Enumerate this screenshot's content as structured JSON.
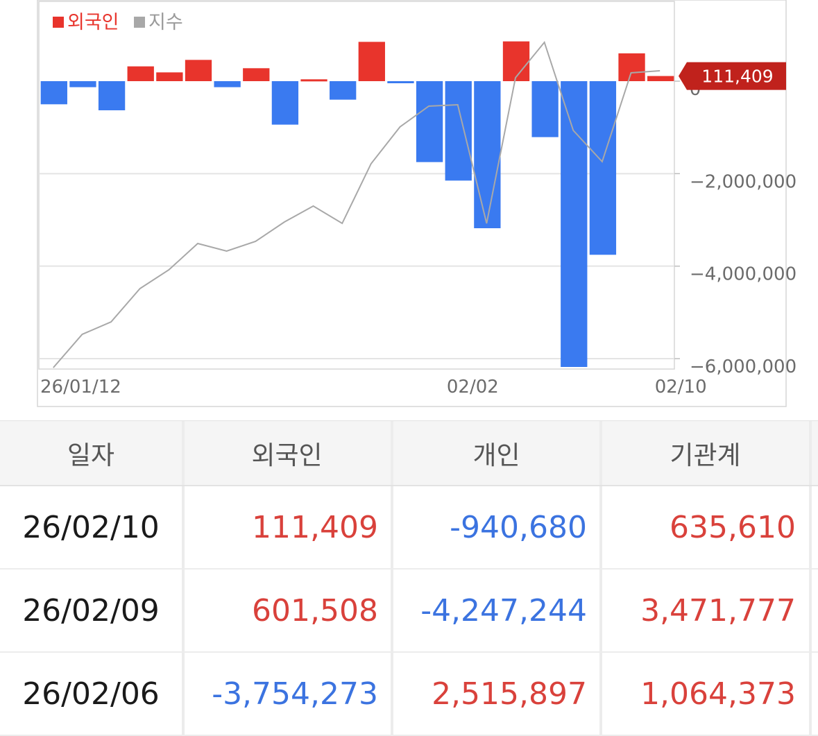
{
  "chart_data": {
    "type": "bar",
    "legend": [
      {
        "name": "외국인",
        "color": "#e8342c"
      },
      {
        "name": "지수",
        "color": "#a8a8a8"
      }
    ],
    "series": [
      {
        "name": "외국인",
        "kind": "bar",
        "values": [
          -500000,
          -130000,
          -630000,
          320000,
          190000,
          460000,
          -130000,
          280000,
          -940000,
          40000,
          -400000,
          850000,
          -30000,
          -1750000,
          -2150000,
          -3180000,
          860000,
          -1210000,
          -6180000,
          -3754273,
          601508,
          111409
        ]
      }
    ],
    "index_trend_visual_only": [
      530,
      482,
      464,
      416,
      389,
      351,
      362,
      348,
      320,
      297,
      322,
      236,
      183,
      153,
      151,
      322,
      112,
      61,
      188,
      233,
      105,
      102
    ],
    "x_tick_labels": [
      {
        "label": "26/01/12",
        "index": 0
      },
      {
        "label": "02/02",
        "index": 15
      },
      {
        "label": "02/10",
        "index": 21
      }
    ],
    "y_ticks": [
      {
        "value": 0,
        "label": "0"
      },
      {
        "value": -2000000,
        "label": "−2,000,000"
      },
      {
        "value": -4000000,
        "label": "−4,000,000"
      },
      {
        "value": -6000000,
        "label": "−6,000,000"
      }
    ],
    "ylim": [
      -6200000,
      1750000
    ],
    "last_value_label": "111,409",
    "grid": true,
    "colors": {
      "positive": "#e8342c",
      "negative": "#3a7af0",
      "index_line": "#a8a8a8",
      "badge": "#c0221c"
    }
  },
  "table": {
    "headers": [
      "일자",
      "외국인",
      "개인",
      "기관계"
    ],
    "rows": [
      {
        "date": "26/02/10",
        "foreign": "111,409",
        "individual": "-940,680",
        "institution": "635,610"
      },
      {
        "date": "26/02/09",
        "foreign": "601,508",
        "individual": "-4,247,244",
        "institution": "3,471,777"
      },
      {
        "date": "26/02/06",
        "foreign": "-3,754,273",
        "individual": "2,515,897",
        "institution": "1,064,373"
      }
    ]
  }
}
